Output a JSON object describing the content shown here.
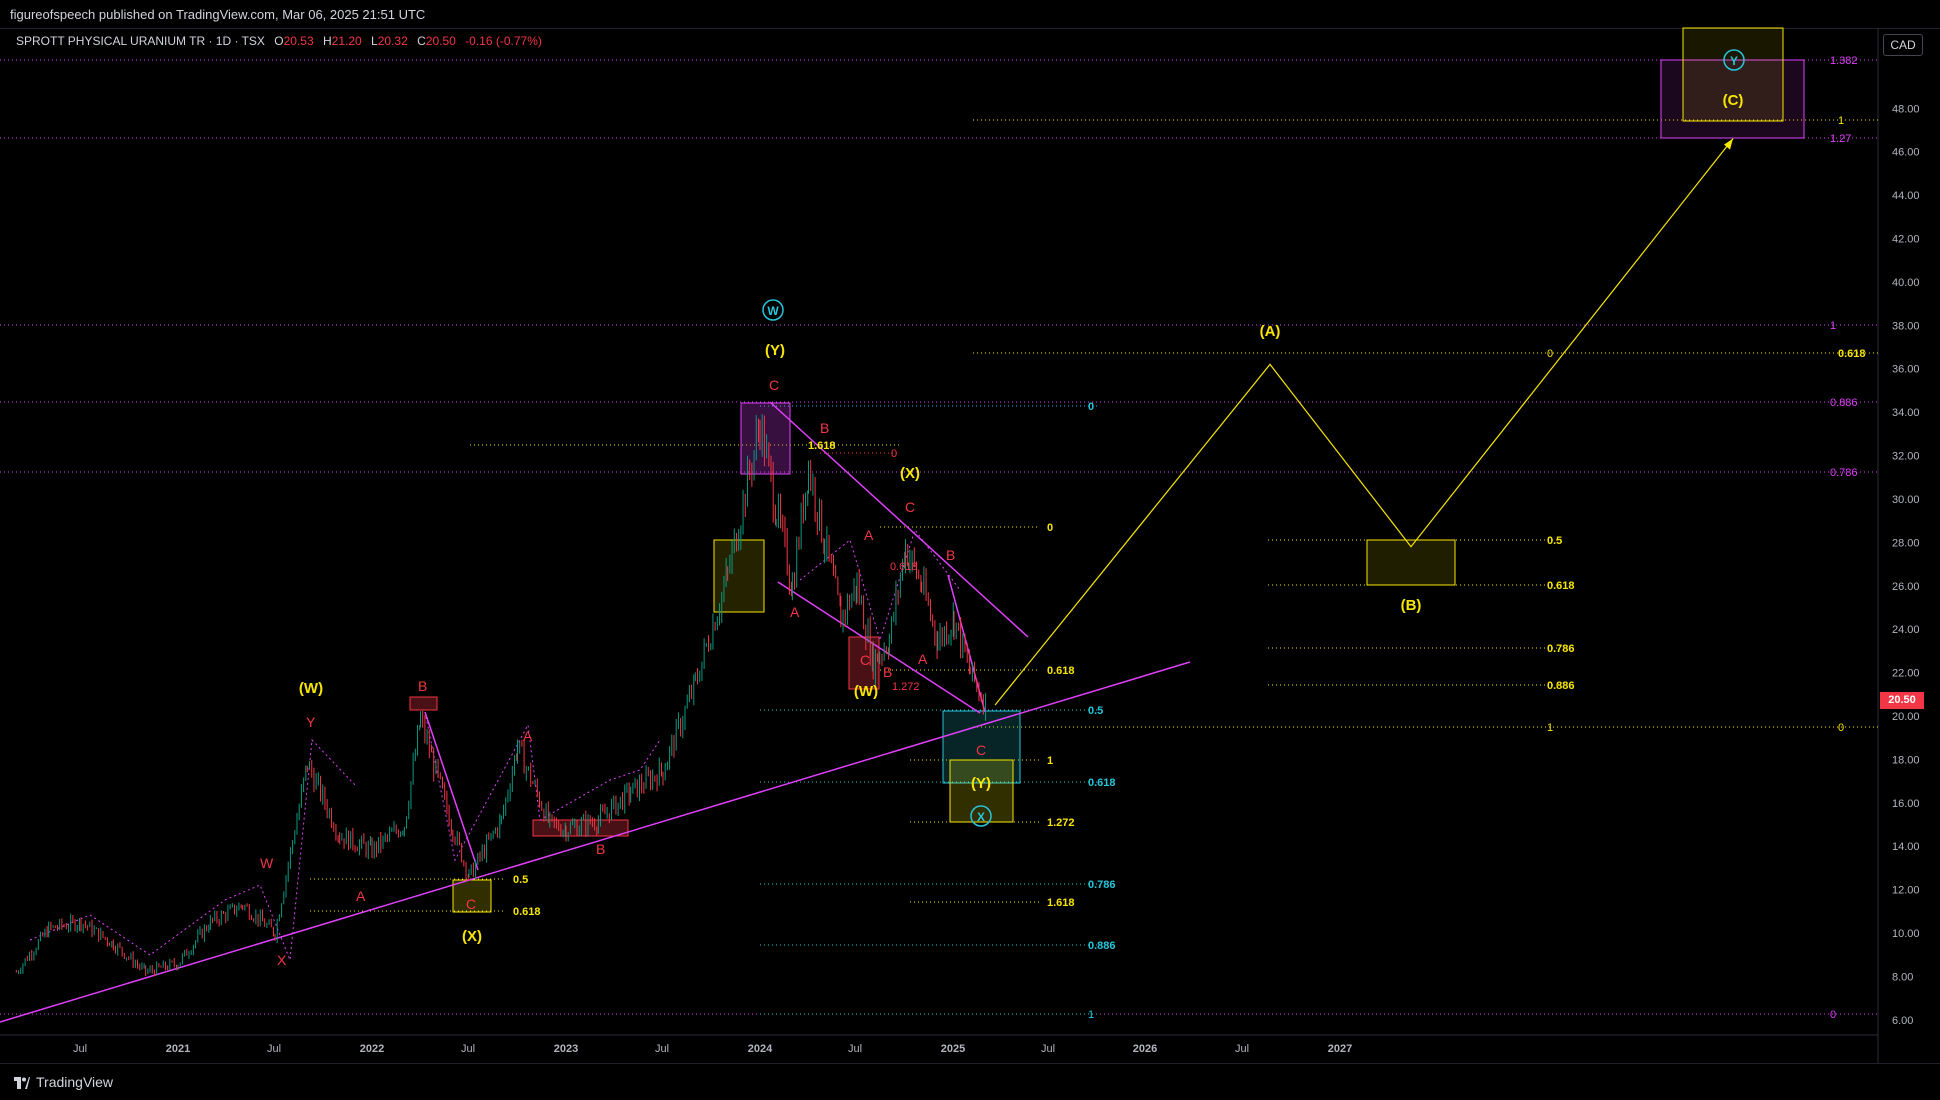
{
  "header": {
    "published": "figureofspeech published on TradingView.com, Mar 06, 2025 21:51 UTC"
  },
  "legend": {
    "symbol": "SPROTT PHYSICAL URANIUM TR · 1D · TSX",
    "o_label": "O",
    "o": "20.53",
    "h_label": "H",
    "h": "21.20",
    "l_label": "L",
    "l": "20.32",
    "c_label": "C",
    "c": "20.50",
    "change": "-0.16 (-0.77%)"
  },
  "currency_button": "CAD",
  "last_price": "20.50",
  "footer": {
    "brand": "TradingView"
  },
  "colors": {
    "up": "#089981",
    "down": "#f23645",
    "yellow": "#f7e600",
    "magenta": "#e040fb",
    "cyan": "#26c6da",
    "red": "#f23645"
  },
  "chart_data": {
    "type": "line",
    "title": "SPROTT PHYSICAL URANIUM TR · 1D · TSX",
    "y_axis": {
      "ylim": [
        5.3,
        51.7
      ],
      "ticks": [
        "6.00",
        "8.00",
        "10.00",
        "12.00",
        "14.00",
        "16.00",
        "18.00",
        "20.00",
        "22.00",
        "24.00",
        "26.00",
        "28.00",
        "30.00",
        "32.00",
        "34.00",
        "36.00",
        "38.00",
        "40.00",
        "42.00",
        "44.00",
        "46.00",
        "48.00"
      ]
    },
    "x_axis": {
      "ticks": [
        "Jul",
        "2021",
        "Jul",
        "2022",
        "Jul",
        "2023",
        "Jul",
        "2024",
        "Jul",
        "2025",
        "Jul",
        "2026",
        "Jul",
        "2027"
      ]
    },
    "series": [
      {
        "x": [
          "2020-03",
          "2020-05",
          "2020-07",
          "2020-09",
          "2020-11",
          "2021-01",
          "2021-03",
          "2021-05",
          "2021-07",
          "2021-09",
          "2021-11",
          "2022-01",
          "2022-03",
          "2022-04",
          "2022-06",
          "2022-07",
          "2022-09",
          "2022-10",
          "2022-12",
          "2023-01",
          "2023-03",
          "2023-05",
          "2023-07",
          "2023-09",
          "2023-11",
          "2024-01",
          "2024-02",
          "2024-03",
          "2024-04",
          "2024-05",
          "2024-06",
          "2024-07",
          "2024-08",
          "2024-09",
          "2024-10",
          "2024-11",
          "2024-12",
          "2025-01",
          "2025-02",
          "2025-03"
        ],
        "values": [
          8.2,
          10.2,
          10.5,
          9.5,
          8.2,
          8.6,
          10.5,
          11.3,
          10.0,
          17.8,
          14.5,
          13.8,
          15.0,
          19.8,
          14.8,
          12.6,
          15.2,
          18.6,
          15.0,
          14.8,
          15.2,
          16.5,
          17.5,
          21.5,
          26.5,
          33.5,
          29.5,
          26.0,
          31.5,
          28.0,
          24.5,
          26.0,
          22.5,
          23.5,
          27.8,
          26.0,
          23.5,
          24.5,
          22.0,
          20.5
        ]
      }
    ],
    "projection": {
      "x": [
        "2025-03",
        "2025-08",
        "2026-03",
        "2027-03"
      ],
      "values": [
        20.5,
        36.2,
        27.8,
        46.6
      ]
    }
  },
  "waves": {
    "W_top": "(W)",
    "Y_top": "(Y)",
    "X_mid": "(X)",
    "W_mid": "(W)",
    "Y_bot": "(Y)",
    "X_left": "(X)",
    "A_proj": "(A)",
    "B_proj": "(B)",
    "C_proj": "(C)",
    "circle_W": "W",
    "circle_X": "X",
    "circle_Y": "Y",
    "small": [
      "W",
      "X",
      "Y",
      "A",
      "B",
      "C",
      "A",
      "B",
      "C",
      "A",
      "B",
      "C",
      "A",
      "B",
      "C",
      "A",
      "B",
      "C",
      "A",
      "B",
      "C"
    ]
  },
  "fib_labels": {
    "f_1382": "1.382",
    "f_127": "1.27",
    "f_1_top": "1",
    "f_0618_r": "0.618",
    "f_0886_r": "0.886",
    "f_0786_r": "0.786",
    "f_1_m": "1",
    "f_0_r": "0",
    "f_0_bot": "0",
    "c_0": "0",
    "c_05": "0.5",
    "c_0618": "0.618",
    "c_0786": "0.786",
    "c_0886": "0.886",
    "c_1": "1",
    "y_0_top": "0",
    "y_0_b": "0",
    "y_05": "0.5",
    "y_0618": "0.618",
    "y_0786": "0.786",
    "y_0886": "0.886",
    "y_1": "1",
    "y_0_mid": "0",
    "y_0618_mid": "0.618",
    "y_1_mid": "1",
    "y_1272": "1.272",
    "y_1618": "1.618",
    "y_05_left": "0.5",
    "y_0618_left": "0.618",
    "r_1618": "1.618",
    "r_0": "0",
    "r_1272": "1.272",
    "r_0618": "0.618"
  }
}
